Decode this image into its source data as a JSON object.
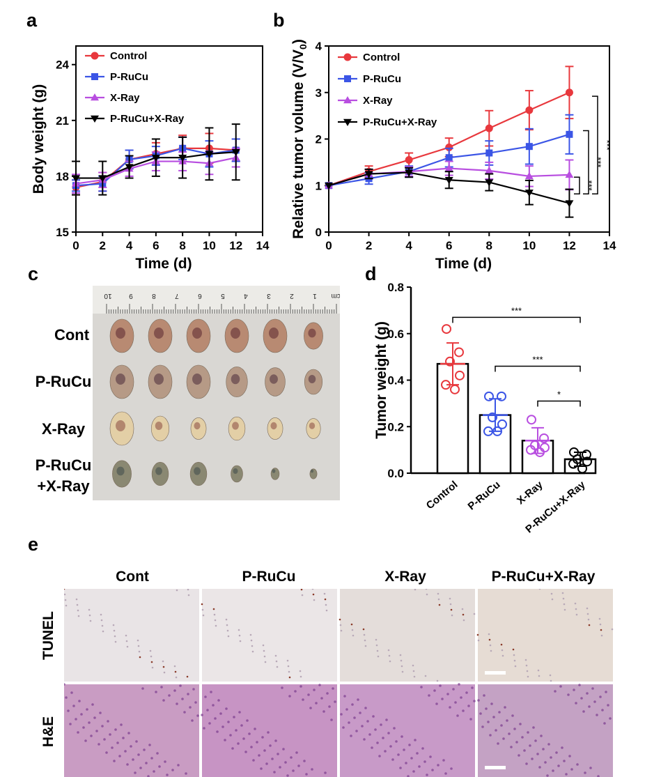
{
  "panel_letters": {
    "a": "a",
    "b": "b",
    "c": "c",
    "d": "d",
    "e": "e"
  },
  "chart_data": [
    {
      "id": "a",
      "type": "line",
      "xlabel": "Time (d)",
      "ylabel": "Body weight (g)",
      "xlim": [
        0,
        14
      ],
      "ylim": [
        15,
        25
      ],
      "xticks": [
        0,
        2,
        4,
        6,
        8,
        10,
        12,
        14
      ],
      "yticks": [
        15,
        18,
        21,
        24
      ],
      "grid": false,
      "legend": "top-left",
      "x": [
        0,
        2,
        4,
        6,
        8,
        10,
        12
      ],
      "series": [
        {
          "name": "Control",
          "marker": "circle",
          "color": "#e8383d",
          "values": [
            17.4,
            17.7,
            18.9,
            19.2,
            19.5,
            19.5,
            19.4
          ],
          "error": [
            0.4,
            0.5,
            0.5,
            0.6,
            0.7,
            0.8,
            0.6
          ]
        },
        {
          "name": "P-RuCu",
          "marker": "square",
          "color": "#3b55e6",
          "values": [
            17.5,
            17.6,
            18.9,
            19.1,
            19.5,
            19.2,
            19.4
          ],
          "error": [
            0.3,
            0.4,
            0.5,
            0.5,
            0.6,
            0.7,
            0.6
          ]
        },
        {
          "name": "X-Ray",
          "marker": "triangle-up",
          "color": "#b84ee0",
          "values": [
            17.6,
            17.8,
            18.4,
            18.8,
            18.8,
            18.7,
            19.0
          ],
          "error": [
            0.5,
            0.4,
            0.4,
            0.5,
            0.5,
            0.6,
            0.5
          ]
        },
        {
          "name": "P-RuCu+X-Ray",
          "marker": "triangle-down",
          "color": "#000000",
          "values": [
            17.9,
            17.9,
            18.5,
            19.0,
            19.0,
            19.2,
            19.3
          ],
          "error": [
            0.9,
            0.9,
            0.6,
            1.0,
            1.1,
            1.4,
            1.5
          ]
        }
      ]
    },
    {
      "id": "b",
      "type": "line",
      "xlabel": "Time (d)",
      "ylabel_main": "Relative tumor volume (V/V",
      "ylabel_sub": "0",
      "ylabel_end": ")",
      "xlim": [
        0,
        14
      ],
      "ylim": [
        0,
        4
      ],
      "xticks": [
        0,
        2,
        4,
        6,
        8,
        10,
        12,
        14
      ],
      "yticks": [
        0,
        1,
        2,
        3,
        4
      ],
      "grid": false,
      "legend": "top-left",
      "x": [
        0,
        2,
        4,
        6,
        8,
        10,
        12
      ],
      "series": [
        {
          "name": "Control",
          "marker": "circle",
          "color": "#e8383d",
          "values": [
            1.0,
            1.3,
            1.55,
            1.82,
            2.23,
            2.62,
            3.0
          ],
          "error": [
            0.0,
            0.12,
            0.15,
            0.2,
            0.38,
            0.42,
            0.56
          ]
        },
        {
          "name": "P-RuCu",
          "marker": "square",
          "color": "#3b55e6",
          "values": [
            1.0,
            1.15,
            1.3,
            1.6,
            1.7,
            1.84,
            2.1
          ],
          "error": [
            0.0,
            0.12,
            0.12,
            0.2,
            0.26,
            0.38,
            0.42
          ]
        },
        {
          "name": "X-Ray",
          "marker": "triangle-up",
          "color": "#b84ee0",
          "values": [
            1.0,
            1.25,
            1.3,
            1.37,
            1.32,
            1.2,
            1.23
          ],
          "error": [
            0.0,
            0.1,
            0.1,
            0.15,
            0.18,
            0.22,
            0.32
          ]
        },
        {
          "name": "P-RuCu+X-Ray",
          "marker": "triangle-down",
          "color": "#000000",
          "values": [
            1.0,
            1.25,
            1.28,
            1.12,
            1.07,
            0.85,
            0.62
          ],
          "error": [
            0.0,
            0.1,
            0.1,
            0.18,
            0.18,
            0.26,
            0.3
          ]
        }
      ],
      "significance": [
        {
          "from": "Control",
          "to": "P-RuCu+X-Ray",
          "label": "***"
        },
        {
          "from": "P-RuCu",
          "to": "P-RuCu+X-Ray",
          "label": "***"
        },
        {
          "from": "X-Ray",
          "to": "P-RuCu+X-Ray",
          "label": "***"
        }
      ]
    },
    {
      "id": "d",
      "type": "bar",
      "ylabel": "Tumor weight (g)",
      "ylim": [
        0,
        0.8
      ],
      "yticks": [
        0.0,
        0.2,
        0.4,
        0.6,
        0.8
      ],
      "categories": [
        "Control",
        "P-RuCu",
        "X-Ray",
        "P-RuCu+X-Ray"
      ],
      "values": [
        0.47,
        0.25,
        0.14,
        0.06
      ],
      "error": [
        0.09,
        0.07,
        0.055,
        0.03
      ],
      "colors": [
        "#e8383d",
        "#3b55e6",
        "#b84ee0",
        "#000000"
      ],
      "points": [
        [
          0.62,
          0.52,
          0.48,
          0.42,
          0.38,
          0.36
        ],
        [
          0.33,
          0.33,
          0.24,
          0.21,
          0.18,
          0.18
        ],
        [
          0.23,
          0.15,
          0.12,
          0.11,
          0.1,
          0.09
        ],
        [
          0.09,
          0.08,
          0.06,
          0.05,
          0.04,
          0.02
        ]
      ],
      "significance": [
        {
          "from": 0,
          "to": 3,
          "label": "***"
        },
        {
          "from": 1,
          "to": 3,
          "label": "***"
        },
        {
          "from": 2,
          "to": 3,
          "label": "*"
        }
      ]
    }
  ],
  "panel_c": {
    "rows": [
      "Cont",
      "P-RuCu",
      "X-Ray",
      "P-RuCu\n+X-Ray"
    ],
    "row_line1": [
      "Cont",
      "P-RuCu",
      "X-Ray",
      "P-RuCu"
    ],
    "row_line2": [
      "",
      "",
      "",
      "+X-Ray"
    ],
    "ruler_numbers": [
      "10",
      "9",
      "8",
      "7",
      "6",
      "5",
      "4",
      "3",
      "2",
      "1",
      "0cm"
    ]
  },
  "panel_e": {
    "columns": [
      "Cont",
      "P-RuCu",
      "X-Ray",
      "P-RuCu+X-Ray"
    ],
    "rows": [
      "TUNEL",
      "H&E"
    ]
  }
}
